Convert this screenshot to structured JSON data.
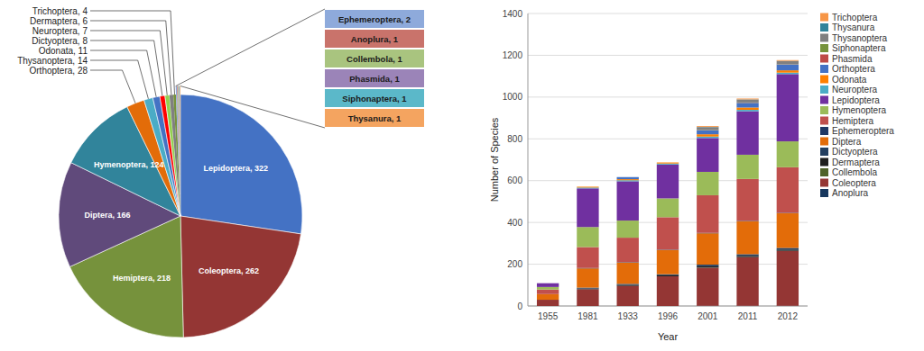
{
  "chart_data": [
    {
      "type": "pie",
      "categories": [
        "Lepidoptera",
        "Coleoptera",
        "Hemiptera",
        "Diptera",
        "Hymenoptera",
        "Orthoptera",
        "Thysanoptera",
        "Odonata",
        "Dictyoptera",
        "Neuroptera",
        "Dermaptera",
        "Trichoptera",
        "Ephemeroptera",
        "Anoplura",
        "Collembola",
        "Phasmida",
        "Siphonaptera",
        "Thysanura"
      ],
      "values": [
        322,
        262,
        218,
        166,
        124,
        28,
        14,
        11,
        8,
        7,
        6,
        4,
        2,
        1,
        1,
        1,
        1,
        1
      ],
      "colors": [
        "#4472C4",
        "#943634",
        "#76923C",
        "#604A7B",
        "#31849B",
        "#E36C09",
        "#4BACC6",
        "#4472C4",
        "#FF0000",
        "#92D050",
        "#808080",
        "#76933C",
        "#8EAADB",
        "#C9736B",
        "#A9C47F",
        "#9B84B8",
        "#5BB8C9",
        "#F4A460"
      ],
      "data_labels": true,
      "value_labels": [
        "Lepidoptera, 322",
        "Coleoptera, 262",
        "Hemiptera, 218",
        "Diptera, 166",
        "Hymenoptera, 124",
        "Orthoptera, 28",
        "Thysanoptera, 14",
        "Odonata, 11",
        "Dictyoptera, 8",
        "Neuroptera, 7",
        "Dermaptera, 6",
        "Trichoptera, 4",
        "Ephemeroptera, 2",
        "Anoplura, 1",
        "Collembola, 1",
        "Phasmida, 1",
        "Siphonaptera, 1",
        "Thysanura, 1"
      ]
    },
    {
      "type": "bar",
      "stacked": true,
      "categories": [
        "1955",
        "1981",
        "1933",
        "1996",
        "2001",
        "2011",
        "2012"
      ],
      "series": [
        {
          "name": "Anoplura",
          "color": "#17375E",
          "values": [
            0,
            0,
            0,
            0,
            1,
            1,
            1
          ]
        },
        {
          "name": "Coleoptera",
          "color": "#943634",
          "values": [
            30,
            80,
            96,
            142,
            182,
            232,
            262
          ]
        },
        {
          "name": "Collembola",
          "color": "#4F6228",
          "values": [
            0,
            0,
            0,
            0,
            1,
            1,
            1
          ]
        },
        {
          "name": "Dermaptera",
          "color": "#1F1F1F",
          "values": [
            0,
            4,
            5,
            5,
            6,
            6,
            6
          ]
        },
        {
          "name": "Dictyoptera",
          "color": "#243F60",
          "values": [
            0,
            4,
            5,
            5,
            8,
            8,
            8
          ]
        },
        {
          "name": "Diptera",
          "color": "#E36C09",
          "values": [
            27,
            92,
            102,
            116,
            150,
            158,
            166
          ]
        },
        {
          "name": "Ephemeroptera",
          "color": "#1F3864",
          "values": [
            0,
            2,
            2,
            2,
            2,
            2,
            2
          ]
        },
        {
          "name": "Hemiptera",
          "color": "#C0504D",
          "values": [
            22,
            100,
            117,
            155,
            180,
            200,
            218
          ]
        },
        {
          "name": "Hymenoptera",
          "color": "#9BBB59",
          "values": [
            12,
            96,
            82,
            90,
            112,
            116,
            124
          ]
        },
        {
          "name": "Lepidoptera",
          "color": "#7030A0",
          "values": [
            18,
            185,
            188,
            162,
            162,
            208,
            322
          ]
        },
        {
          "name": "Neuroptera",
          "color": "#4BACC6",
          "values": [
            0,
            4,
            5,
            5,
            7,
            7,
            7
          ]
        },
        {
          "name": "Odonata",
          "color": "#FF8000",
          "values": [
            0,
            4,
            5,
            5,
            11,
            11,
            11
          ]
        },
        {
          "name": "Orthoptera",
          "color": "#4472C4",
          "values": [
            0,
            0,
            10,
            0,
            18,
            22,
            28
          ]
        },
        {
          "name": "Phasmida",
          "color": "#BE4B48",
          "values": [
            0,
            0,
            0,
            0,
            1,
            1,
            1
          ]
        },
        {
          "name": "Siphonaptera",
          "color": "#76933C",
          "values": [
            0,
            0,
            0,
            0,
            1,
            1,
            1
          ]
        },
        {
          "name": "Thysanoptera",
          "color": "#808080",
          "values": [
            0,
            0,
            0,
            0,
            14,
            14,
            14
          ]
        },
        {
          "name": "Thysanura",
          "color": "#31849B",
          "values": [
            0,
            0,
            0,
            0,
            1,
            1,
            1
          ]
        },
        {
          "name": "Trichoptera",
          "color": "#F79646",
          "values": [
            0,
            0,
            0,
            0,
            4,
            4,
            4
          ]
        }
      ],
      "xlabel": "Year",
      "ylabel": "Number of Species",
      "ylim": [
        0,
        1400
      ],
      "yticks": [
        0,
        200,
        400,
        600,
        800,
        1000,
        1200,
        1400
      ],
      "grid": true,
      "legend": "right"
    }
  ]
}
